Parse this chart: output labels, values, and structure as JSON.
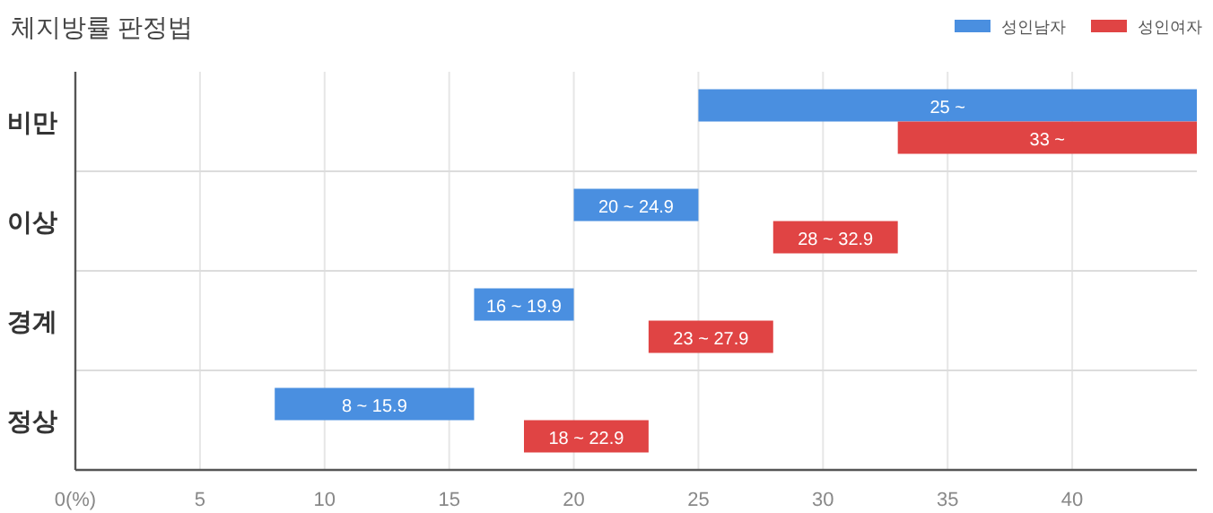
{
  "chart_data": {
    "type": "bar",
    "orientation": "horizontal",
    "title": "체지방률 판정법",
    "categories": [
      "비만",
      "이상",
      "경계",
      "정상"
    ],
    "series": [
      {
        "name": "성인남자",
        "color": "#4a8fe0",
        "base": [
          25,
          20,
          16,
          8
        ],
        "values": [
          20,
          5,
          4,
          8
        ]
      },
      {
        "name": "성인여자",
        "color": "#e04444",
        "base": [
          33,
          28,
          23,
          18
        ],
        "values": [
          12,
          5,
          5,
          5
        ]
      }
    ],
    "annotations": [
      {
        "text": "25 ~",
        "x": 35,
        "y": "비만"
      },
      {
        "text": "20 ~ 24.9",
        "x": 22.5,
        "y": "이상"
      },
      {
        "text": "16 ~ 19.9",
        "x": 18,
        "y": "경계"
      },
      {
        "text": "8 ~ 15.9",
        "x": 12,
        "y": "정상"
      },
      {
        "text": "33 ~",
        "x": 39,
        "y": "비만"
      },
      {
        "text": "28 ~ 32.9",
        "x": 30.5,
        "y": "이상"
      },
      {
        "text": "23 ~ 27.9",
        "x": 25.5,
        "y": "경계"
      },
      {
        "text": "18 ~ 22.9",
        "x": 20.5,
        "y": "정상"
      }
    ],
    "xlim": [
      0,
      45
    ],
    "xticks": [
      {
        "value": 0,
        "label": "0(%)"
      },
      5,
      10,
      15,
      20,
      25,
      30,
      35,
      40
    ],
    "grid": true,
    "legend": "top right"
  }
}
